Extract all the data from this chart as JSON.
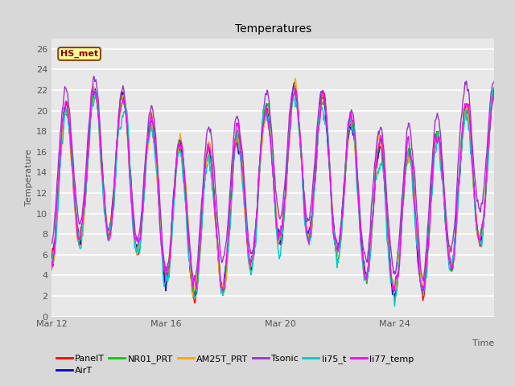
{
  "title": "Temperatures",
  "xlabel": "Time",
  "ylabel": "Temperature",
  "annotation_text": "HS_met",
  "annotation_bg": "#FFFF99",
  "annotation_border": "#8B4513",
  "series": [
    "PanelT",
    "AirT",
    "NR01_PRT",
    "AM25T_PRT",
    "Tsonic",
    "li75_t",
    "li77_temp"
  ],
  "colors": [
    "#FF0000",
    "#0000CD",
    "#00CC00",
    "#FFA500",
    "#9933CC",
    "#00CCCC",
    "#FF00FF"
  ],
  "xlim": [
    11.0,
    26.5
  ],
  "ylim": [
    0,
    27
  ],
  "yticks": [
    0,
    2,
    4,
    6,
    8,
    10,
    12,
    14,
    16,
    18,
    20,
    22,
    24,
    26
  ],
  "xtick_labels": [
    "Mar 12",
    "Mar 16",
    "Mar 20",
    "Mar 24"
  ],
  "xtick_positions": [
    11,
    15,
    19,
    23
  ],
  "bg_color": "#D8D8D8",
  "plot_bg": "#E8E8E8",
  "grid_color": "#FFFFFF",
  "linewidth": 1.0,
  "title_fontsize": 10,
  "tick_fontsize": 8,
  "label_fontsize": 8,
  "legend_fontsize": 8
}
